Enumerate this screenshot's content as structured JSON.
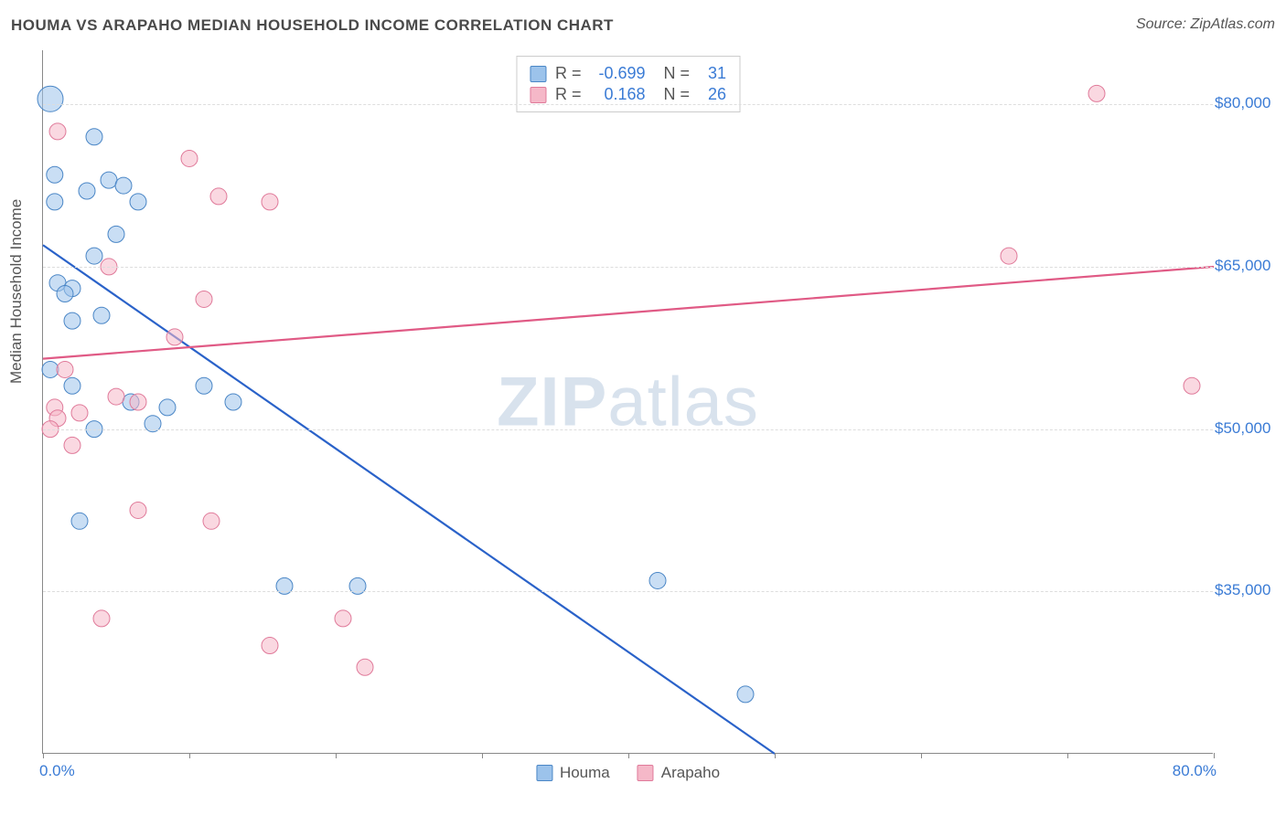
{
  "title": "HOUMA VS ARAPAHO MEDIAN HOUSEHOLD INCOME CORRELATION CHART",
  "source": "Source: ZipAtlas.com",
  "ylabel": "Median Household Income",
  "watermark_a": "ZIP",
  "watermark_b": "atlas",
  "chart": {
    "type": "scatter",
    "xlim": [
      0,
      80
    ],
    "ylim": [
      20000,
      85000
    ],
    "x_ticks": [
      0,
      10,
      20,
      30,
      40,
      50,
      60,
      70,
      80
    ],
    "y_grid": [
      35000,
      50000,
      65000,
      80000
    ],
    "y_labels": [
      "$35,000",
      "$50,000",
      "$65,000",
      "$80,000"
    ],
    "x_min_label": "0.0%",
    "x_max_label": "80.0%",
    "background_color": "#ffffff",
    "grid_color": "#dddddd",
    "axis_color": "#888888",
    "tick_label_color": "#3a7bd5",
    "point_radius": 9,
    "point_opacity": 0.55,
    "line_width": 2.2,
    "series": [
      {
        "name": "Houma",
        "fill": "#9cc3eb",
        "stroke": "#4a86c6",
        "line_color": "#2a62c9",
        "R": "-0.699",
        "N": "31",
        "trend": {
          "x1": 0,
          "y1": 67000,
          "x2": 50,
          "y2": 20000
        },
        "points": [
          {
            "x": 0.5,
            "y": 80500,
            "r": 14
          },
          {
            "x": 3.5,
            "y": 77000
          },
          {
            "x": 0.8,
            "y": 73500
          },
          {
            "x": 4.5,
            "y": 73000
          },
          {
            "x": 5.5,
            "y": 72500
          },
          {
            "x": 3.0,
            "y": 72000
          },
          {
            "x": 0.8,
            "y": 71000
          },
          {
            "x": 6.5,
            "y": 71000
          },
          {
            "x": 5.0,
            "y": 68000
          },
          {
            "x": 3.5,
            "y": 66000
          },
          {
            "x": 1.0,
            "y": 63500
          },
          {
            "x": 2.0,
            "y": 63000
          },
          {
            "x": 1.5,
            "y": 62500
          },
          {
            "x": 4.0,
            "y": 60500
          },
          {
            "x": 2.0,
            "y": 60000
          },
          {
            "x": 0.5,
            "y": 55500
          },
          {
            "x": 2.0,
            "y": 54000
          },
          {
            "x": 11.0,
            "y": 54000
          },
          {
            "x": 13.0,
            "y": 52500
          },
          {
            "x": 6.0,
            "y": 52500
          },
          {
            "x": 8.5,
            "y": 52000
          },
          {
            "x": 7.5,
            "y": 50500
          },
          {
            "x": 3.5,
            "y": 50000
          },
          {
            "x": 2.5,
            "y": 41500
          },
          {
            "x": 16.5,
            "y": 35500
          },
          {
            "x": 21.5,
            "y": 35500
          },
          {
            "x": 42.0,
            "y": 36000
          },
          {
            "x": 48.0,
            "y": 25500
          }
        ]
      },
      {
        "name": "Arapaho",
        "fill": "#f5b8c8",
        "stroke": "#e07a9a",
        "line_color": "#e05a85",
        "R": "0.168",
        "N": "26",
        "trend": {
          "x1": 0,
          "y1": 56500,
          "x2": 80,
          "y2": 65000
        },
        "points": [
          {
            "x": 72.0,
            "y": 81000
          },
          {
            "x": 1.0,
            "y": 77500
          },
          {
            "x": 10.0,
            "y": 75000
          },
          {
            "x": 12.0,
            "y": 71500
          },
          {
            "x": 15.5,
            "y": 71000
          },
          {
            "x": 66.0,
            "y": 66000
          },
          {
            "x": 4.5,
            "y": 65000
          },
          {
            "x": 11.0,
            "y": 62000
          },
          {
            "x": 9.0,
            "y": 58500
          },
          {
            "x": 1.5,
            "y": 55500
          },
          {
            "x": 78.5,
            "y": 54000
          },
          {
            "x": 5.0,
            "y": 53000
          },
          {
            "x": 6.5,
            "y": 52500
          },
          {
            "x": 0.8,
            "y": 52000
          },
          {
            "x": 2.5,
            "y": 51500
          },
          {
            "x": 1.0,
            "y": 51000
          },
          {
            "x": 0.5,
            "y": 50000
          },
          {
            "x": 2.0,
            "y": 48500
          },
          {
            "x": 6.5,
            "y": 42500
          },
          {
            "x": 11.5,
            "y": 41500
          },
          {
            "x": 4.0,
            "y": 32500
          },
          {
            "x": 20.5,
            "y": 32500
          },
          {
            "x": 15.5,
            "y": 30000
          },
          {
            "x": 22.0,
            "y": 28000
          }
        ]
      }
    ]
  }
}
